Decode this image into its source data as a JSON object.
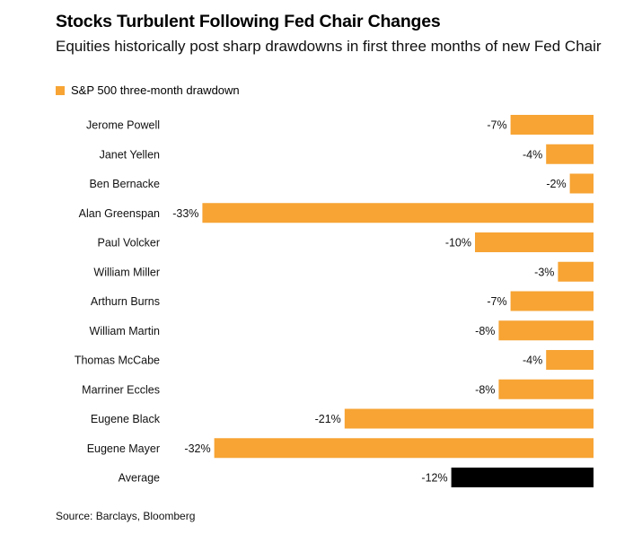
{
  "colors": {
    "series": "#f7a434",
    "average": "#000000"
  },
  "chart_data": {
    "type": "bar",
    "orientation": "horizontal",
    "title": "Stocks Turbulent Following Fed Chair Changes",
    "subtitle": "Equities historically post sharp drawdowns in first three months of new Fed Chair",
    "legend": {
      "label": "S&P 500 three-month drawdown",
      "placement": "top-left"
    },
    "source": "Source: Barclays, Bloomberg",
    "unit": "%",
    "xlim": [
      -34,
      0
    ],
    "categories": [
      "Jerome Powell",
      "Janet Yellen",
      "Ben Bernacke",
      "Alan Greenspan",
      "Paul Volcker",
      "William Miller",
      "Arthurn Burns",
      "William Martin",
      "Thomas McCabe",
      "Marriner Eccles",
      "Eugene Black",
      "Eugene Mayer",
      "Average"
    ],
    "values": [
      -7,
      -4,
      -2,
      -33,
      -10,
      -3,
      -7,
      -8,
      -4,
      -8,
      -21,
      -32,
      -12
    ],
    "value_labels": [
      "-7%",
      "-4%",
      "-2%",
      "-33%",
      "-10%",
      "-3%",
      "-7%",
      "-8%",
      "-4%",
      "-8%",
      "-21%",
      "-32%",
      "-12%"
    ],
    "highlight": "Average"
  }
}
